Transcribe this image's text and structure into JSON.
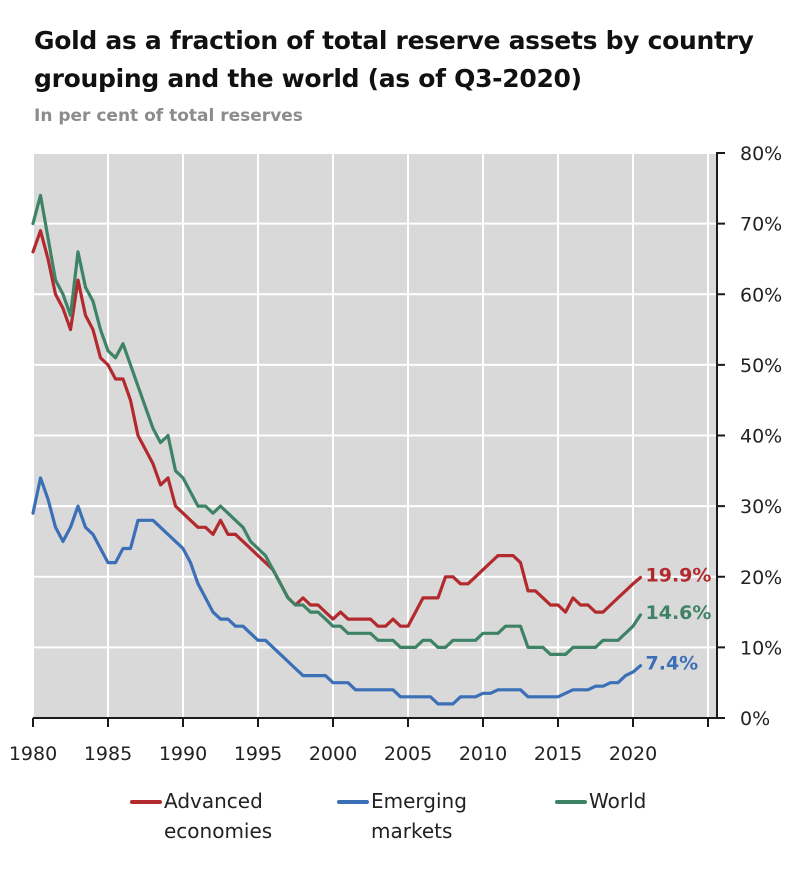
{
  "chart_data": {
    "type": "line",
    "title": "Gold as a fraction of total reserve assets by country grouping and the world (as of Q3-2020)",
    "subtitle": "In per cent of total reserves",
    "xlabel": "",
    "ylabel": "",
    "xlim": [
      1980,
      2025
    ],
    "ylim": [
      0,
      80
    ],
    "grid": true,
    "y_axis_side": "right",
    "x_ticks": [
      1980,
      1985,
      1990,
      1995,
      2000,
      2005,
      2010,
      2015,
      2020,
      2025
    ],
    "x_tick_labels": [
      "1980",
      "1985",
      "1990",
      "1995",
      "2000",
      "2005",
      "2010",
      "2015",
      "2020"
    ],
    "y_ticks": [
      0,
      10,
      20,
      30,
      40,
      50,
      60,
      70,
      80
    ],
    "y_tick_labels": [
      "0%",
      "10%",
      "20%",
      "30%",
      "40%",
      "50%",
      "60%",
      "70%",
      "80%"
    ],
    "legend_position": "bottom",
    "x": [
      1980.0,
      1980.5,
      1981.0,
      1981.5,
      1982.0,
      1982.5,
      1983.0,
      1983.5,
      1984.0,
      1984.5,
      1985.0,
      1985.5,
      1986.0,
      1986.5,
      1987.0,
      1987.5,
      1988.0,
      1988.5,
      1989.0,
      1989.5,
      1990.0,
      1990.5,
      1991.0,
      1991.5,
      1992.0,
      1992.5,
      1993.0,
      1993.5,
      1994.0,
      1994.5,
      1995.0,
      1995.5,
      1996.0,
      1996.5,
      1997.0,
      1997.5,
      1998.0,
      1998.5,
      1999.0,
      1999.5,
      2000.0,
      2000.5,
      2001.0,
      2001.5,
      2002.0,
      2002.5,
      2003.0,
      2003.5,
      2004.0,
      2004.5,
      2005.0,
      2005.5,
      2006.0,
      2006.5,
      2007.0,
      2007.5,
      2008.0,
      2008.5,
      2009.0,
      2009.5,
      2010.0,
      2010.5,
      2011.0,
      2011.5,
      2012.0,
      2012.5,
      2013.0,
      2013.5,
      2014.0,
      2014.5,
      2015.0,
      2015.5,
      2016.0,
      2016.5,
      2017.0,
      2017.5,
      2018.0,
      2018.5,
      2019.0,
      2019.5,
      2020.0,
      2020.5
    ],
    "series": [
      {
        "name": "Advanced economies",
        "color": "#b22a2e",
        "end_label": "19.9%",
        "values": [
          66,
          69,
          65,
          60,
          58,
          55,
          62,
          57,
          55,
          51,
          50,
          48,
          48,
          45,
          40,
          38,
          36,
          33,
          34,
          30,
          29,
          28,
          27,
          27,
          26,
          28,
          26,
          26,
          25,
          24,
          23,
          22,
          21,
          19,
          17,
          16,
          17,
          16,
          16,
          15,
          14,
          15,
          14,
          14,
          14,
          14,
          13,
          13,
          14,
          13,
          13,
          15,
          17,
          17,
          17,
          20,
          20,
          19,
          19,
          20,
          21,
          22,
          23,
          23,
          23,
          22,
          18,
          18,
          17,
          16,
          16,
          15,
          17,
          16,
          16,
          15,
          15,
          16,
          17,
          18,
          19,
          19.9
        ]
      },
      {
        "name": "Emerging markets",
        "color": "#3b6fb6",
        "end_label": "7.4%",
        "values": [
          29,
          34,
          31,
          27,
          25,
          27,
          30,
          27,
          26,
          24,
          22,
          22,
          24,
          24,
          28,
          28,
          28,
          27,
          26,
          25,
          24,
          22,
          19,
          17,
          15,
          14,
          14,
          13,
          13,
          12,
          11,
          11,
          10,
          9,
          8,
          7,
          6,
          6,
          6,
          6,
          5,
          5,
          5,
          4,
          4,
          4,
          4,
          4,
          4,
          3,
          3,
          3,
          3,
          3,
          2,
          2,
          2,
          3,
          3,
          3,
          3.5,
          3.5,
          4,
          4,
          4,
          4,
          3,
          3,
          3,
          3,
          3,
          3.5,
          4,
          4,
          4,
          4.5,
          4.5,
          5,
          5,
          6,
          6.5,
          7.4
        ]
      },
      {
        "name": "World",
        "color": "#3f8367",
        "end_label": "14.6%",
        "values": [
          70,
          74,
          68,
          62,
          60,
          57,
          66,
          61,
          59,
          55,
          52,
          51,
          53,
          50,
          47,
          44,
          41,
          39,
          40,
          35,
          34,
          32,
          30,
          30,
          29,
          30,
          29,
          28,
          27,
          25,
          24,
          23,
          21,
          19,
          17,
          16,
          16,
          15,
          15,
          14,
          13,
          13,
          12,
          12,
          12,
          12,
          11,
          11,
          11,
          10,
          10,
          10,
          11,
          11,
          10,
          10,
          11,
          11,
          11,
          11,
          12,
          12,
          12,
          13,
          13,
          13,
          10,
          10,
          10,
          9,
          9,
          9,
          10,
          10,
          10,
          10,
          11,
          11,
          11,
          12,
          13,
          14.6
        ]
      }
    ]
  },
  "legend": [
    {
      "label_line1": "Advanced",
      "label_line2": "economies"
    },
    {
      "label_line1": "Emerging",
      "label_line2": "markets"
    },
    {
      "label_line1": "World",
      "label_line2": ""
    }
  ],
  "colors": {
    "plot_background": "#d9d9d9",
    "gridline": "#ffffff",
    "axis": "#1a1a1a"
  }
}
